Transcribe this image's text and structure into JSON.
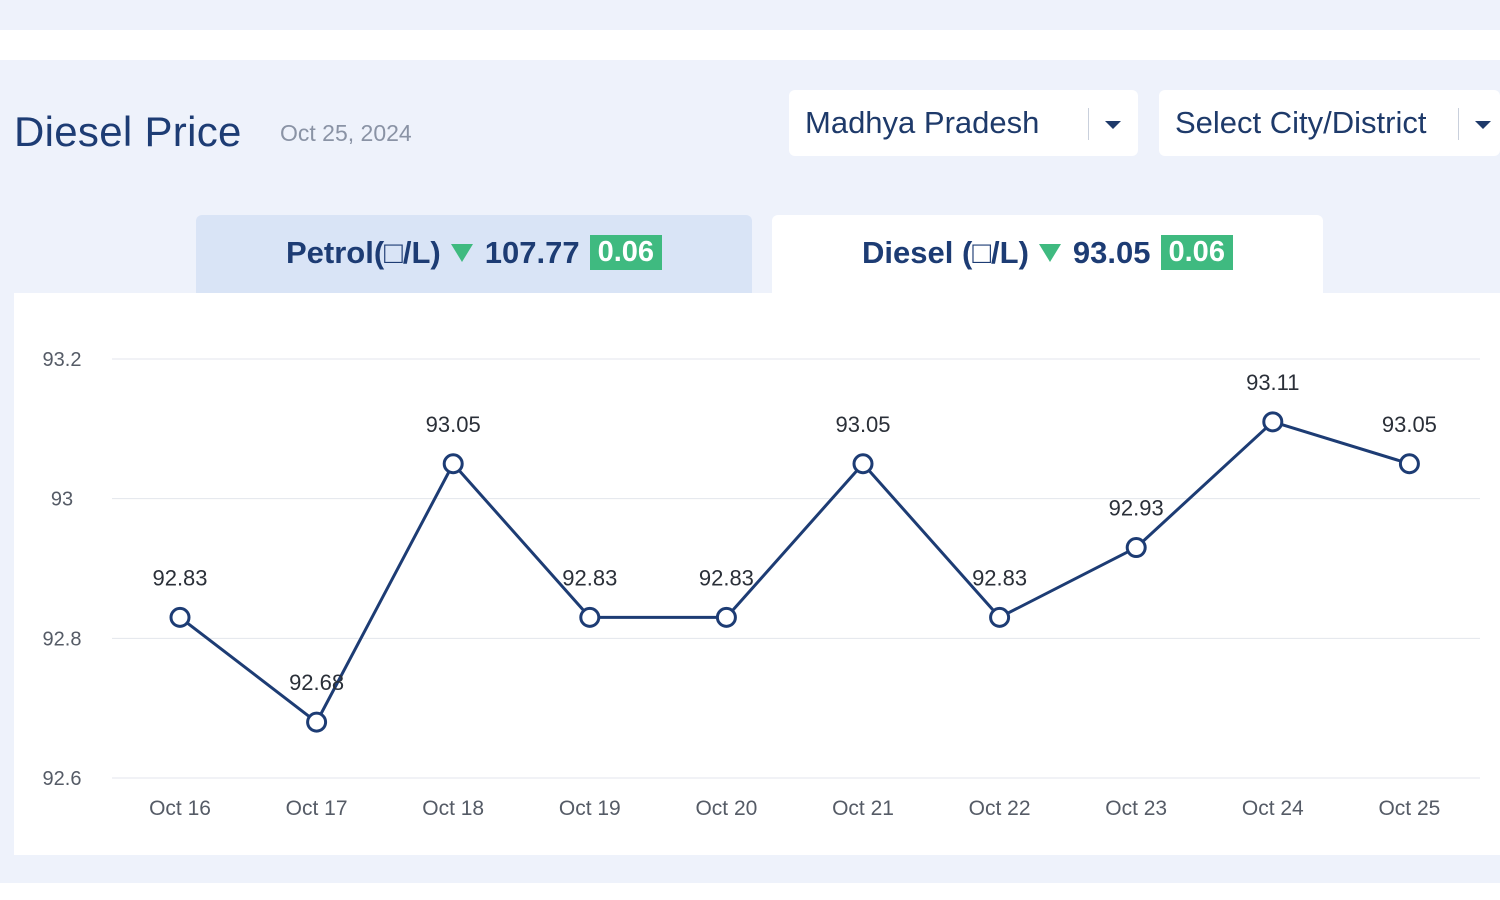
{
  "header": {
    "title": "Diesel Price",
    "date": "Oct 25, 2024"
  },
  "filters": {
    "state": "Madhya Pradesh",
    "city_placeholder": "Select City/District"
  },
  "tabs": [
    {
      "label": "Petrol(□/L)",
      "price": "107.77",
      "change": "0.06",
      "trend": "down"
    },
    {
      "label": "Diesel (□/L)",
      "price": "93.05",
      "change": "0.06",
      "trend": "down"
    }
  ],
  "colors": {
    "line": "#1d3c74",
    "grid": "#e3e6ec",
    "trend_down": "#3fba80",
    "panel_bg": "#eef2fb",
    "active_tab": "#ffffff",
    "inactive_tab": "#d9e4f6"
  },
  "icons": {
    "dropdown": "caret-down-icon",
    "trend": "triangle-down-icon"
  },
  "chart_data": {
    "type": "line",
    "categories": [
      "Oct 16",
      "Oct 17",
      "Oct 18",
      "Oct 19",
      "Oct 20",
      "Oct 21",
      "Oct 22",
      "Oct 23",
      "Oct 24",
      "Oct 25"
    ],
    "values": [
      92.83,
      92.68,
      93.05,
      92.83,
      92.83,
      93.05,
      92.83,
      92.93,
      93.11,
      93.05
    ],
    "data_labels": [
      "92.83",
      "92.68",
      "93.05",
      "92.83",
      "92.83",
      "93.05",
      "92.83",
      "92.93",
      "93.11",
      "93.05"
    ],
    "y_ticks": [
      "93.2",
      "93",
      "92.8",
      "92.6"
    ],
    "y_tick_values": [
      93.2,
      93.0,
      92.8,
      92.6
    ],
    "ylim": [
      92.6,
      93.2
    ],
    "grid": true,
    "legend": "none"
  }
}
